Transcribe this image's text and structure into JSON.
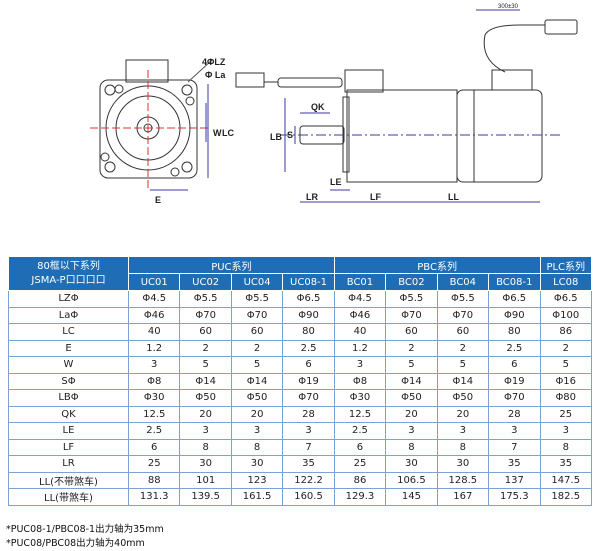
{
  "drawing": {
    "labels": {
      "lz": "4ΦLZ",
      "la": "Φ La",
      "w": "W",
      "lc": "LC",
      "e": "E",
      "qk": "QK",
      "lb": "LB",
      "s": "S",
      "le": "LE",
      "lr": "LR",
      "lf": "LF",
      "ll": "LL",
      "cable": "300±30"
    }
  },
  "table": {
    "corner": [
      "80框以下系列",
      "JSMA-P口口口口"
    ],
    "groups": [
      {
        "label": "PUC系列"
      },
      {
        "label": "PBC系列"
      },
      {
        "label": "PLC系列"
      }
    ],
    "models": [
      "UC01",
      "UC02",
      "UC04",
      "UC08-1",
      "BC01",
      "BC02",
      "BC04",
      "BC08-1",
      "LC08"
    ],
    "rows": [
      {
        "label": "LZΦ",
        "values": [
          "Φ4.5",
          "Φ5.5",
          "Φ5.5",
          "Φ6.5",
          "Φ4.5",
          "Φ5.5",
          "Φ5.5",
          "Φ6.5",
          "Φ6.5"
        ]
      },
      {
        "label": "LaΦ",
        "values": [
          "Φ46",
          "Φ70",
          "Φ70",
          "Φ90",
          "Φ46",
          "Φ70",
          "Φ70",
          "Φ90",
          "Φ100"
        ]
      },
      {
        "label": "LC",
        "values": [
          "40",
          "60",
          "60",
          "80",
          "40",
          "60",
          "60",
          "80",
          "86"
        ]
      },
      {
        "label": "E",
        "values": [
          "1.2",
          "2",
          "2",
          "2.5",
          "1.2",
          "2",
          "2",
          "2.5",
          "2"
        ]
      },
      {
        "label": "W",
        "values": [
          "3",
          "5",
          "5",
          "6",
          "3",
          "5",
          "5",
          "6",
          "5"
        ]
      },
      {
        "label": "SΦ",
        "values": [
          "Φ8",
          "Φ14",
          "Φ14",
          "Φ19",
          "Φ8",
          "Φ14",
          "Φ14",
          "Φ19",
          "Φ16"
        ]
      },
      {
        "label": "LBΦ",
        "values": [
          "Φ30",
          "Φ50",
          "Φ50",
          "Φ70",
          "Φ30",
          "Φ50",
          "Φ50",
          "Φ70",
          "Φ80"
        ]
      },
      {
        "label": "QK",
        "values": [
          "12.5",
          "20",
          "20",
          "28",
          "12.5",
          "20",
          "20",
          "28",
          "25"
        ]
      },
      {
        "label": "LE",
        "values": [
          "2.5",
          "3",
          "3",
          "3",
          "2.5",
          "3",
          "3",
          "3",
          "3"
        ]
      },
      {
        "label": "LF",
        "values": [
          "6",
          "8",
          "8",
          "7",
          "6",
          "8",
          "8",
          "7",
          "8"
        ]
      },
      {
        "label": "LR",
        "values": [
          "25",
          "30",
          "30",
          "35",
          "25",
          "30",
          "30",
          "35",
          "35"
        ]
      },
      {
        "label": "LL(不带煞车)",
        "values": [
          "88",
          "101",
          "123",
          "122.2",
          "86",
          "106.5",
          "128.5",
          "137",
          "147.5"
        ]
      },
      {
        "label": "LL(带煞车)",
        "values": [
          "131.3",
          "139.5",
          "161.5",
          "160.5",
          "129.3",
          "145",
          "167",
          "175.3",
          "182.5"
        ]
      }
    ]
  },
  "notes": [
    "*PUC08-1/PBC08-1出力轴为35mm",
    "*PUC08/PBC08出力轴为40mm"
  ],
  "colors": {
    "header": "#1f6db5",
    "border": "#7ba3d2",
    "dimension": "#3a3aa0",
    "centerline": "#e03030"
  }
}
